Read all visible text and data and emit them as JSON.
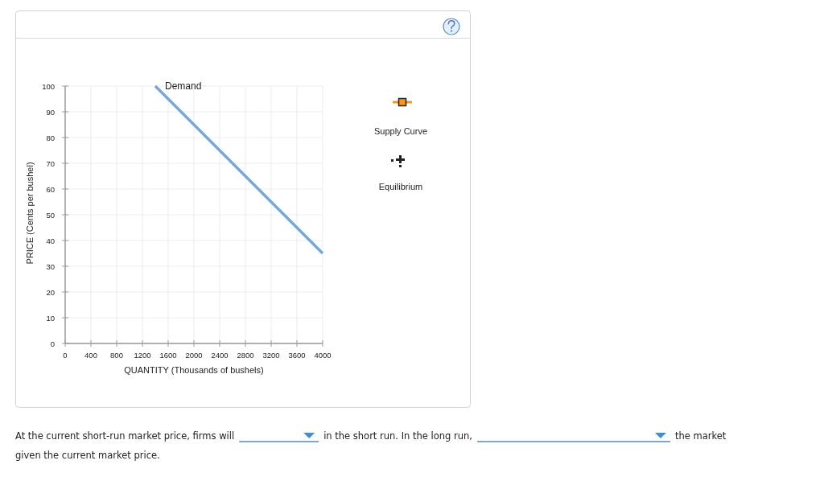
{
  "chart_data": {
    "type": "line",
    "xlabel": "QUANTITY (Thousands of bushels)",
    "ylabel": "PRICE (Cents per bushel)",
    "xlim": [
      0,
      4000
    ],
    "ylim": [
      0,
      100
    ],
    "xticks": [
      0,
      400,
      800,
      1200,
      1600,
      2000,
      2400,
      2800,
      3200,
      3600,
      4000
    ],
    "yticks": [
      0,
      10,
      20,
      30,
      40,
      50,
      60,
      70,
      80,
      90,
      100
    ],
    "grid": true,
    "series": [
      {
        "name": "Demand",
        "color": "#7ba7d5",
        "x": [
          1400,
          4000
        ],
        "values": [
          100,
          35
        ]
      }
    ],
    "annotations": [
      "Supply Curve",
      "Equilibrium",
      "At the current short-run market price, firms will",
      "in the short run. In the long run,",
      "the market",
      "given the current market price."
    ]
  }
}
